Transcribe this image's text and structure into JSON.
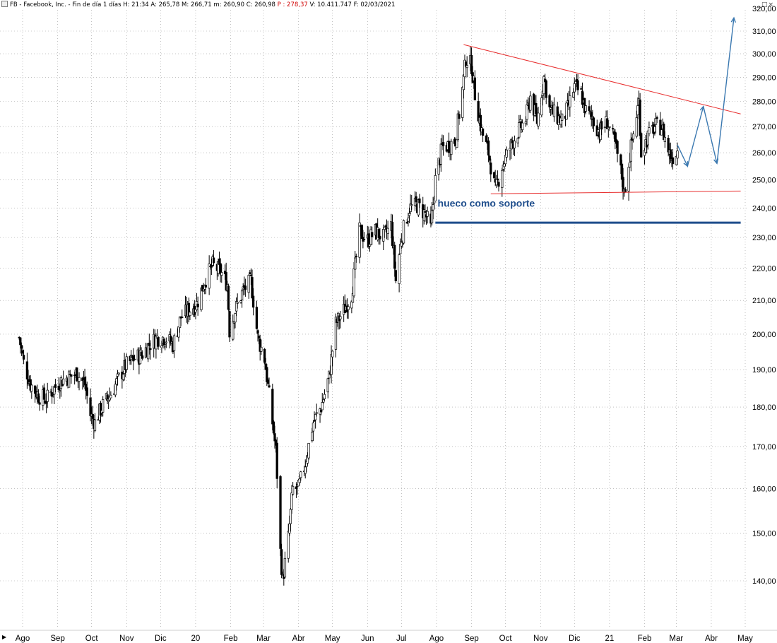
{
  "header": {
    "symbol": "FB - Facebook, Inc. - Fin de día 1 días",
    "h": "H: 21:34",
    "a": "A: 265,78",
    "m_high": "M: 266,71",
    "m_low": "m: 260,90",
    "c": "C: 260,98",
    "p": "P : 278,37",
    "v": "V: 10.411.747",
    "f": "F: 02/03/2021",
    "price_color": "#d00000"
  },
  "window": {
    "buttons": "_□×"
  },
  "chart_data": {
    "type": "candlestick",
    "y_scale": "log",
    "y_ticks": [
      140,
      150,
      160,
      170,
      180,
      190,
      200,
      210,
      220,
      230,
      240,
      250,
      260,
      270,
      280,
      290,
      300,
      310
    ],
    "y_tick_labels": [
      "140,00",
      "150,00",
      "160,00",
      "170,00",
      "180,00",
      "190,00",
      "200,00",
      "210,00",
      "220,00",
      "230,00",
      "240,00",
      "250,00",
      "260,00",
      "270,00",
      "280,00",
      "290,00",
      "300,00",
      "310,00"
    ],
    "x_labels": [
      "Ago",
      "Sep",
      "Oct",
      "Nov",
      "Dic",
      "20",
      "Feb",
      "Mar",
      "Abr",
      "May",
      "Jun",
      "Jul",
      "Ago",
      "Sep",
      "Oct",
      "Nov",
      "Dic",
      "21",
      "Feb",
      "Mar",
      "Abr",
      "May"
    ],
    "x_dates": [
      "2019-08-01",
      "2019-09-01",
      "2019-10-01",
      "2019-11-01",
      "2019-12-01",
      "2020-01-01",
      "2020-02-01",
      "2020-03-01",
      "2020-04-01",
      "2020-05-01",
      "2020-06-01",
      "2020-07-01",
      "2020-08-01",
      "2020-09-01",
      "2020-10-01",
      "2020-11-01",
      "2020-12-01",
      "2021-01-01",
      "2021-02-01",
      "2021-03-01",
      "2021-04-01",
      "2021-05-01"
    ],
    "grid": true,
    "colors": {
      "candle": "#000000",
      "trendline": "#e83030",
      "support": "#1f4e8c",
      "projection": "#3a78b0",
      "grid": "#9a9a9a"
    },
    "close_path": [
      [
        "2019-07-29",
        199
      ],
      [
        "2019-08-02",
        192
      ],
      [
        "2019-08-08",
        186
      ],
      [
        "2019-08-15",
        183
      ],
      [
        "2019-08-22",
        182
      ],
      [
        "2019-08-29",
        185
      ],
      [
        "2019-09-04",
        187
      ],
      [
        "2019-09-11",
        188
      ],
      [
        "2019-09-18",
        189
      ],
      [
        "2019-09-25",
        186
      ],
      [
        "2019-09-30",
        178
      ],
      [
        "2019-10-04",
        176
      ],
      [
        "2019-10-10",
        180
      ],
      [
        "2019-10-17",
        183
      ],
      [
        "2019-10-24",
        187
      ],
      [
        "2019-10-31",
        191
      ],
      [
        "2019-11-07",
        193
      ],
      [
        "2019-11-14",
        194
      ],
      [
        "2019-11-21",
        197
      ],
      [
        "2019-11-28",
        199
      ],
      [
        "2019-12-05",
        199
      ],
      [
        "2019-12-12",
        197
      ],
      [
        "2019-12-19",
        205
      ],
      [
        "2019-12-26",
        207
      ],
      [
        "2020-01-02",
        209
      ],
      [
        "2020-01-09",
        216
      ],
      [
        "2020-01-16",
        221
      ],
      [
        "2020-01-23",
        219
      ],
      [
        "2020-01-29",
        215
      ],
      [
        "2020-01-31",
        201
      ],
      [
        "2020-02-05",
        207
      ],
      [
        "2020-02-12",
        213
      ],
      [
        "2020-02-19",
        216
      ],
      [
        "2020-02-21",
        210
      ],
      [
        "2020-02-25",
        199
      ],
      [
        "2020-03-02",
        193
      ],
      [
        "2020-03-06",
        183
      ],
      [
        "2020-03-12",
        169
      ],
      [
        "2020-03-16",
        146
      ],
      [
        "2020-03-18",
        140
      ],
      [
        "2020-03-23",
        149
      ],
      [
        "2020-03-27",
        160
      ],
      [
        "2020-04-01",
        160
      ],
      [
        "2020-04-07",
        166
      ],
      [
        "2020-04-14",
        176
      ],
      [
        "2020-04-21",
        180
      ],
      [
        "2020-04-28",
        188
      ],
      [
        "2020-05-04",
        203
      ],
      [
        "2020-05-11",
        207
      ],
      [
        "2020-05-18",
        212
      ],
      [
        "2020-05-25",
        232
      ],
      [
        "2020-06-01",
        229
      ],
      [
        "2020-06-08",
        232
      ],
      [
        "2020-06-15",
        230
      ],
      [
        "2020-06-22",
        234
      ],
      [
        "2020-06-26",
        216
      ],
      [
        "2020-07-01",
        230
      ],
      [
        "2020-07-08",
        240
      ],
      [
        "2020-07-15",
        241
      ],
      [
        "2020-07-22",
        238
      ],
      [
        "2020-07-27",
        233
      ],
      [
        "2020-07-31",
        250
      ],
      [
        "2020-08-06",
        262
      ],
      [
        "2020-08-12",
        263
      ],
      [
        "2020-08-18",
        265
      ],
      [
        "2020-08-24",
        285
      ],
      [
        "2020-08-27",
        298
      ],
      [
        "2020-09-01",
        295
      ],
      [
        "2020-09-04",
        283
      ],
      [
        "2020-09-10",
        268
      ],
      [
        "2020-09-16",
        260
      ],
      [
        "2020-09-22",
        246
      ],
      [
        "2020-09-28",
        255
      ],
      [
        "2020-10-05",
        262
      ],
      [
        "2020-10-12",
        268
      ],
      [
        "2020-10-19",
        273
      ],
      [
        "2020-10-23",
        282
      ],
      [
        "2020-10-29",
        272
      ],
      [
        "2020-11-04",
        290
      ],
      [
        "2020-11-09",
        277
      ],
      [
        "2020-11-13",
        275
      ],
      [
        "2020-11-20",
        272
      ],
      [
        "2020-11-25",
        277
      ],
      [
        "2020-12-01",
        286
      ],
      [
        "2020-12-07",
        283
      ],
      [
        "2020-12-11",
        276
      ],
      [
        "2020-12-17",
        273
      ],
      [
        "2020-12-23",
        268
      ],
      [
        "2020-12-30",
        272
      ],
      [
        "2021-01-06",
        263
      ],
      [
        "2021-01-12",
        251
      ],
      [
        "2021-01-14",
        245
      ],
      [
        "2021-01-20",
        262
      ],
      [
        "2021-01-27",
        280
      ],
      [
        "2021-01-29",
        260
      ],
      [
        "2021-02-04",
        266
      ],
      [
        "2021-02-10",
        270
      ],
      [
        "2021-02-16",
        270
      ],
      [
        "2021-02-22",
        261
      ],
      [
        "2021-02-25",
        258
      ],
      [
        "2021-03-02",
        261
      ]
    ],
    "trendlines": {
      "upper": [
        [
          "2020-08-25",
          304
        ],
        [
          "2021-04-27",
          275
        ]
      ],
      "lower": [
        [
          "2020-09-18",
          245
        ],
        [
          "2021-04-27",
          246
        ]
      ],
      "support": [
        [
          "2020-07-31",
          235
        ],
        [
          "2021-04-27",
          235
        ]
      ]
    },
    "projection_path": [
      [
        "2021-03-02",
        263
      ],
      [
        "2021-03-11",
        255
      ],
      [
        "2021-03-25",
        278
      ],
      [
        "2021-04-06",
        256
      ],
      [
        "2021-04-21",
        316
      ]
    ],
    "annotation": {
      "text": "hueco como soporte",
      "date": "2020-08-02",
      "price": 240.5
    }
  }
}
